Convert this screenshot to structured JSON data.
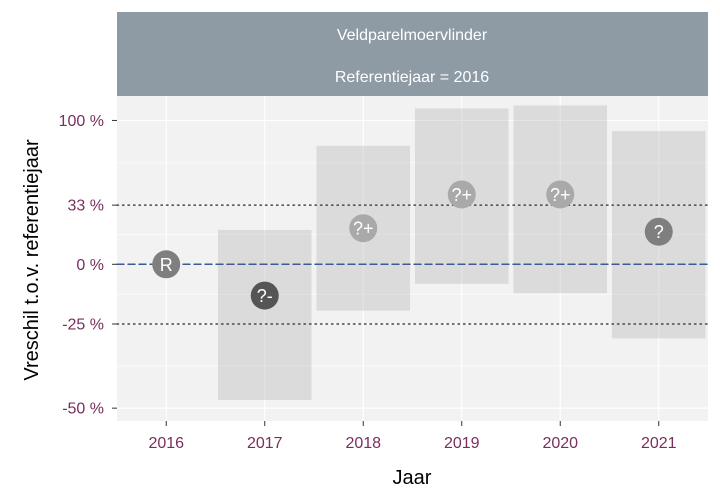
{
  "chart_data": {
    "type": "interval",
    "strip": {
      "title": "Veldparelmoervlinder",
      "subtitle": "Referentiejaar = 2016"
    },
    "xlabel": "Jaar",
    "ylabel": "Vreschil t.o.v. referentiejaar",
    "x_ticks": [
      "2016",
      "2017",
      "2018",
      "2019",
      "2020",
      "2021"
    ],
    "y_ticks": [
      {
        "value": 100,
        "label": "100 %"
      },
      {
        "value": 33,
        "label": "33 %"
      },
      {
        "value": 0,
        "label": "0 %"
      },
      {
        "value": -25,
        "label": "-25 %"
      },
      {
        "value": -50,
        "label": "-50 %"
      }
    ],
    "reference_lines": [
      {
        "value": 0,
        "style": "dashed",
        "color": "#3b5b92"
      },
      {
        "value": 33,
        "style": "dotted",
        "color": "#3c4a5a"
      },
      {
        "value": -25,
        "style": "dotted",
        "color": "#3c4a5a"
      }
    ],
    "points": [
      {
        "year": "2016",
        "estimate": 0,
        "lower": null,
        "upper": null,
        "label": "R",
        "color": "#7f7f7f"
      },
      {
        "year": "2017",
        "estimate": -14,
        "lower": -48,
        "upper": 18,
        "label": "?-",
        "color": "#555555"
      },
      {
        "year": "2018",
        "estimate": 19,
        "lower": -20,
        "upper": 77,
        "label": "?+",
        "color": "#a9a9a9"
      },
      {
        "year": "2019",
        "estimate": 40,
        "lower": -9,
        "upper": 112,
        "label": "?+",
        "color": "#a9a9a9"
      },
      {
        "year": "2020",
        "estimate": 40,
        "lower": -13,
        "upper": 115,
        "label": "?+",
        "color": "#a9a9a9"
      },
      {
        "year": "2021",
        "estimate": 17,
        "lower": -30,
        "upper": 90,
        "label": "?",
        "color": "#7f7f7f"
      }
    ],
    "colors": {
      "strip_background": "#8e9ba5",
      "panel_background": "#f2f2f2",
      "grid": "#ffffff",
      "interval_fill": "#b3b3b3"
    }
  }
}
